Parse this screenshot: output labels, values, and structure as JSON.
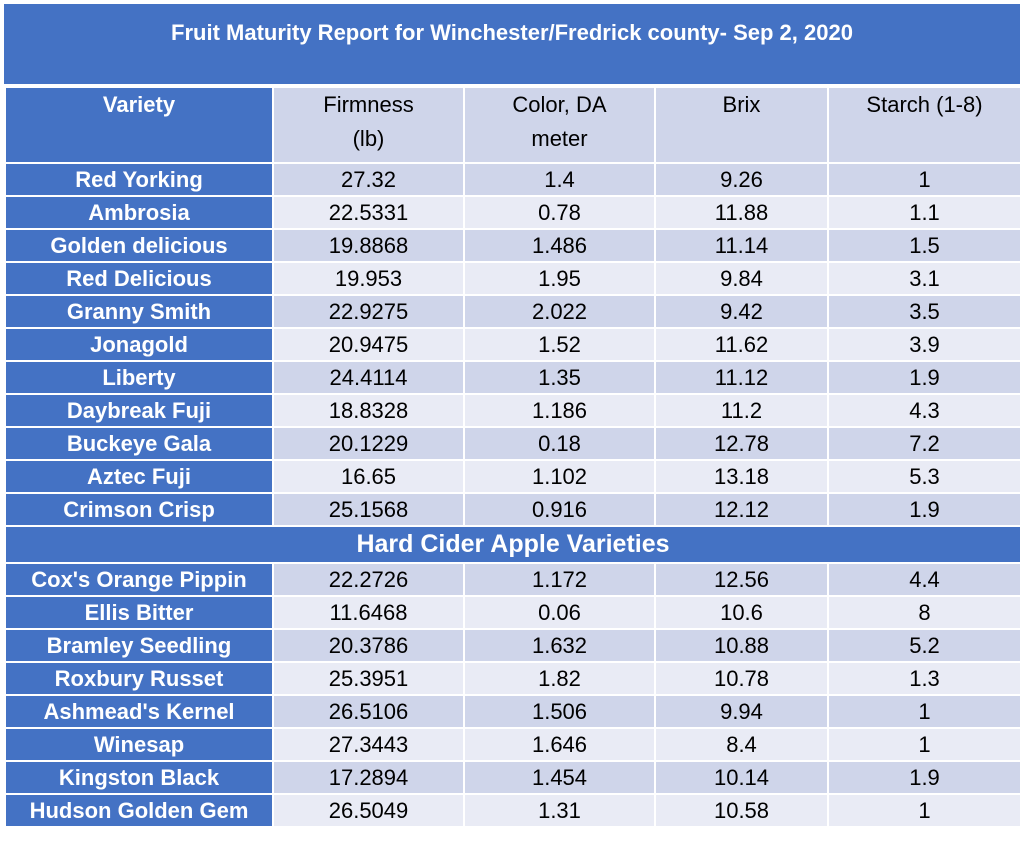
{
  "title": "Fruit Maturity Report for Winchester/Fredrick county- Sep 2, 2020",
  "headers": {
    "variety": "Variety",
    "firmness_line1": "Firmness",
    "firmness_line2": "(lb)",
    "color_line1": "Color, DA",
    "color_line2": "meter",
    "brix": "Brix",
    "starch": "Starch (1-8)"
  },
  "varieties": [
    {
      "name": "Red Yorking",
      "firmness": "27.32",
      "color": "1.4",
      "brix": "9.26",
      "starch": "1"
    },
    {
      "name": "Ambrosia",
      "firmness": "22.5331",
      "color": "0.78",
      "brix": "11.88",
      "starch": "1.1"
    },
    {
      "name": "Golden delicious",
      "firmness": "19.8868",
      "color": "1.486",
      "brix": "11.14",
      "starch": "1.5"
    },
    {
      "name": "Red Delicious",
      "firmness": "19.953",
      "color": "1.95",
      "brix": "9.84",
      "starch": "3.1"
    },
    {
      "name": "Granny Smith",
      "firmness": "22.9275",
      "color": "2.022",
      "brix": "9.42",
      "starch": "3.5"
    },
    {
      "name": "Jonagold",
      "firmness": "20.9475",
      "color": "1.52",
      "brix": "11.62",
      "starch": "3.9"
    },
    {
      "name": "Liberty",
      "firmness": "24.4114",
      "color": "1.35",
      "brix": "11.12",
      "starch": "1.9"
    },
    {
      "name": "Daybreak Fuji",
      "firmness": "18.8328",
      "color": "1.186",
      "brix": "11.2",
      "starch": "4.3"
    },
    {
      "name": "Buckeye Gala",
      "firmness": "20.1229",
      "color": "0.18",
      "brix": "12.78",
      "starch": "7.2"
    },
    {
      "name": "Aztec Fuji",
      "firmness": "16.65",
      "color": "1.102",
      "brix": "13.18",
      "starch": "5.3"
    },
    {
      "name": "Crimson Crisp",
      "firmness": "25.1568",
      "color": "0.916",
      "brix": "12.12",
      "starch": "1.9"
    }
  ],
  "cider_section_title": "Hard Cider Apple Varieties",
  "cider_varieties": [
    {
      "name": "Cox's Orange Pippin",
      "firmness": "22.2726",
      "color": "1.172",
      "brix": "12.56",
      "starch": "4.4"
    },
    {
      "name": "Ellis Bitter",
      "firmness": "11.6468",
      "color": "0.06",
      "brix": "10.6",
      "starch": "8"
    },
    {
      "name": "Bramley Seedling",
      "firmness": "20.3786",
      "color": "1.632",
      "brix": "10.88",
      "starch": "5.2"
    },
    {
      "name": "Roxbury Russet",
      "firmness": "25.3951",
      "color": "1.82",
      "brix": "10.78",
      "starch": "1.3"
    },
    {
      "name": "Ashmead's Kernel",
      "firmness": "26.5106",
      "color": "1.506",
      "brix": "9.94",
      "starch": "1"
    },
    {
      "name": "Winesap",
      "firmness": "27.3443",
      "color": "1.646",
      "brix": "8.4",
      "starch": "1"
    },
    {
      "name": "Kingston Black",
      "firmness": "17.2894",
      "color": "1.454",
      "brix": "10.14",
      "starch": "1.9"
    },
    {
      "name": "Hudson Golden Gem",
      "firmness": "26.5049",
      "color": "1.31",
      "brix": "10.58",
      "starch": "1"
    }
  ],
  "colors": {
    "header_blue": "#4472c4",
    "row_dark": "#cfd5ea",
    "row_light": "#e9ebf5"
  }
}
